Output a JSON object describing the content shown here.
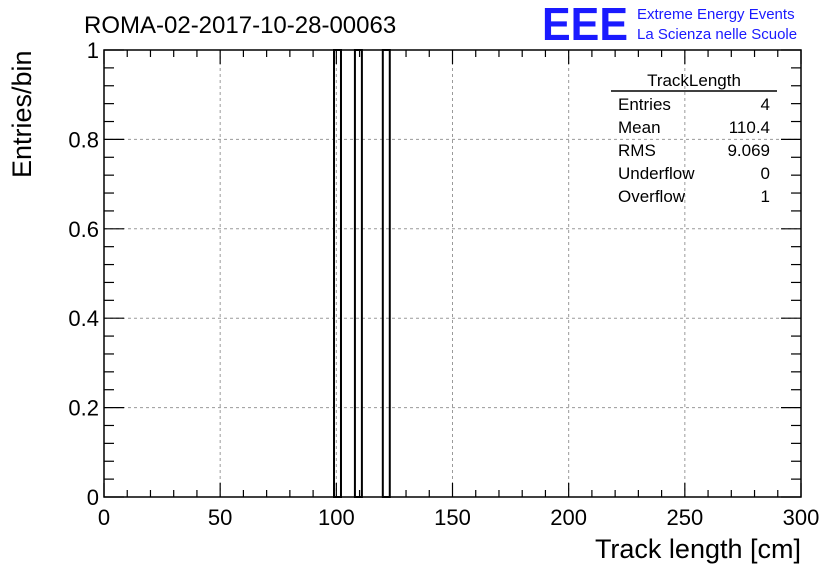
{
  "header": {
    "run_title": "ROMA-02-2017-10-28-00063",
    "logo_text": "EEE",
    "logo_line1": "Extreme Energy Events",
    "logo_line2": "La Scienza nelle Scuole",
    "logo_color": "#1a1aff"
  },
  "stats": {
    "name": "TrackLength",
    "rows": [
      {
        "label": "Entries",
        "value": "4"
      },
      {
        "label": "Mean",
        "value": "110.4"
      },
      {
        "label": "RMS",
        "value": "9.069"
      },
      {
        "label": "Underflow",
        "value": "0"
      },
      {
        "label": "Overflow",
        "value": "1"
      }
    ]
  },
  "chart_data": {
    "type": "bar",
    "xlabel": "Track length [cm]",
    "ylabel": "Entries/bin",
    "xlim": [
      0,
      300
    ],
    "ylim": [
      0,
      1
    ],
    "xticks": [
      0,
      50,
      100,
      150,
      200,
      250,
      300
    ],
    "yticks": [
      0,
      0.2,
      0.4,
      0.6,
      0.8,
      1
    ],
    "ytick_labels": [
      "0",
      "0.2",
      "0.4",
      "0.6",
      "0.8",
      "1"
    ],
    "grid": true,
    "bin_width": 3,
    "bins": [
      {
        "x_low": 99,
        "x_high": 102,
        "value": 1
      },
      {
        "x_low": 108,
        "x_high": 111,
        "value": 1
      },
      {
        "x_low": 120,
        "x_high": 123,
        "value": 1
      }
    ],
    "line_color": "#000000",
    "grid_color": "#9a9a9a"
  }
}
